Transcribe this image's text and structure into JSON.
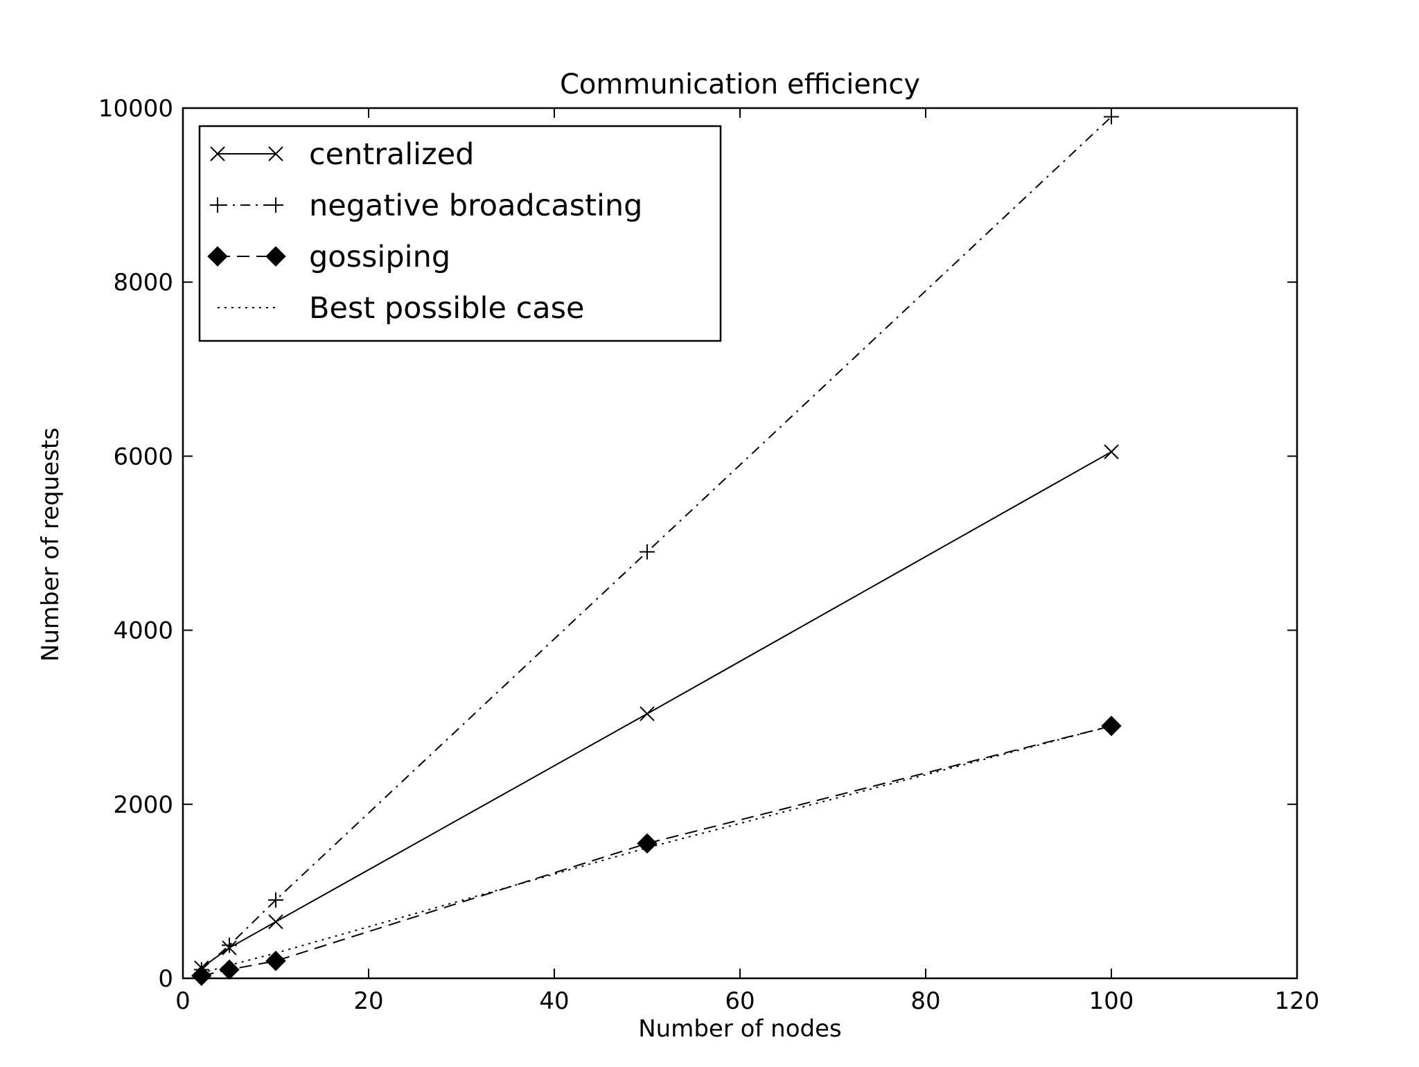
{
  "chart_data": {
    "type": "line",
    "title": "Communication efficiency",
    "xlabel": "Number of nodes",
    "ylabel": "Number of requests",
    "xlim": [
      0,
      120
    ],
    "ylim": [
      0,
      10000
    ],
    "xticks": [
      0,
      20,
      40,
      60,
      80,
      100,
      120
    ],
    "yticks": [
      0,
      2000,
      4000,
      6000,
      8000,
      10000
    ],
    "xtick_labels": [
      "0",
      "20",
      "40",
      "60",
      "80",
      "100",
      "120"
    ],
    "ytick_labels": [
      "0",
      "2000",
      "4000",
      "6000",
      "8000",
      "10000"
    ],
    "legend_position": "upper-left",
    "series": [
      {
        "name": "centralized",
        "marker": "x",
        "linestyle": "solid",
        "x": [
          2,
          5,
          10,
          50,
          100
        ],
        "y": [
          120,
          350,
          650,
          3040,
          6050
        ]
      },
      {
        "name": "negative broadcasting",
        "marker": "+",
        "linestyle": "dashdot",
        "x": [
          2,
          5,
          10,
          50,
          100
        ],
        "y": [
          100,
          380,
          900,
          4900,
          9900
        ]
      },
      {
        "name": "gossiping",
        "marker": "diamond",
        "linestyle": "dashed",
        "x": [
          2,
          5,
          10,
          50,
          100
        ],
        "y": [
          30,
          100,
          200,
          1550,
          2900
        ]
      },
      {
        "name": "Best possible case",
        "marker": "none",
        "linestyle": "dotted",
        "x": [
          2,
          5,
          10,
          50,
          100
        ],
        "y": [
          60,
          150,
          290,
          1500,
          2900
        ]
      }
    ]
  }
}
